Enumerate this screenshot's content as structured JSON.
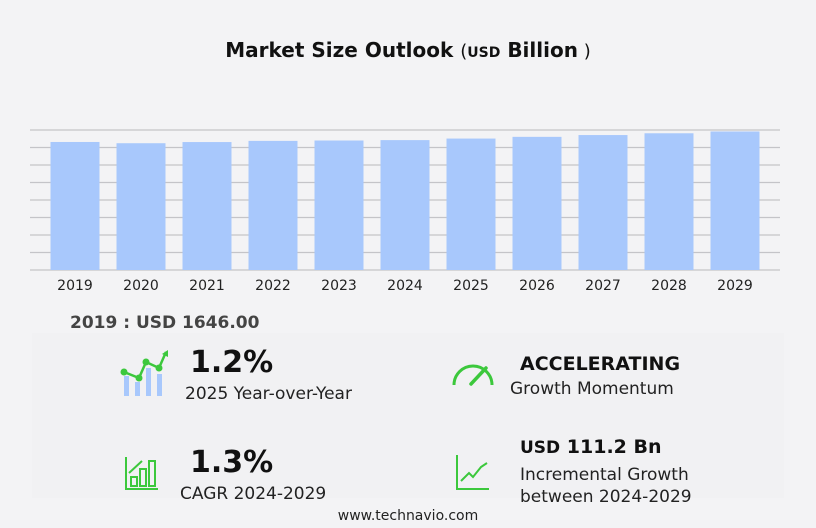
{
  "chart_data": {
    "type": "bar",
    "title": "Market Size Outlook",
    "title_unit": "USD",
    "title_unit2": "Billion",
    "categories": [
      "2019",
      "2020",
      "2021",
      "2022",
      "2023",
      "2024",
      "2025",
      "2026",
      "2027",
      "2028",
      "2029"
    ],
    "values": [
      1646,
      1630,
      1645,
      1660,
      1665,
      1670,
      1690,
      1712,
      1735,
      1758,
      1781
    ],
    "ylim": [
      0,
      1800
    ],
    "grid": true,
    "bar_color": "#a8c8fc"
  },
  "base": "2019 : USD  1646.00",
  "stats": {
    "yoy_value": "1.2%",
    "yoy_label": "2025 Year-over-Year",
    "momentum_value": "ACCELERATING",
    "momentum_label": "Growth Momentum",
    "cagr_value": "1.3%",
    "cagr_label": "CAGR 2024-2029",
    "inc_unit": "USD",
    "inc_value": "111.2 Bn",
    "inc_label1": "Incremental Growth",
    "inc_label2": "between 2024-2029"
  },
  "accent": "#3cc83c",
  "footer": "www.technavio.com"
}
